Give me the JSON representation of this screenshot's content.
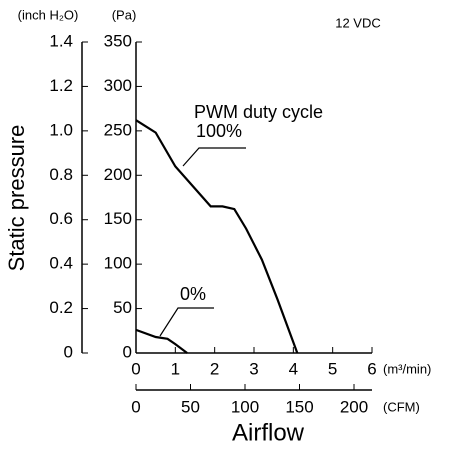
{
  "chart_data": {
    "type": "line",
    "title": "12 VDC",
    "ylabel": "Static pressure",
    "xlabel": "Airflow",
    "yunit": "(Pa)",
    "y2unit": "(inch H₂O)",
    "xunit": "(m³/min)",
    "x2unit": "(CFM)",
    "annotation": "PWM duty cycle",
    "xlim": [
      0,
      6
    ],
    "xticks": [
      0,
      1,
      2,
      3,
      4,
      5,
      6
    ],
    "x2lim": [
      0,
      216.5
    ],
    "x2ticks": [
      0,
      50,
      100,
      150,
      200
    ],
    "ylim": [
      0,
      350
    ],
    "yticks": [
      0,
      50,
      100,
      150,
      200,
      250,
      300,
      350
    ],
    "y2lim": [
      0,
      1.4
    ],
    "y2ticks": [
      0,
      0.2,
      0.4,
      0.6,
      0.8,
      {
        "value": 1.0,
        "label": "1.0"
      },
      1.2,
      1.4
    ],
    "grid": false,
    "series": [
      {
        "name": "100%",
        "color": "#000000",
        "x": [
          0,
          0.5,
          1,
          1.5,
          1.9,
          2.2,
          2.5,
          2.8,
          3.2,
          3.6,
          4.1
        ],
        "values": [
          262,
          248,
          210,
          185,
          165,
          165,
          162,
          140,
          105,
          60,
          0
        ]
      },
      {
        "name": "0%",
        "color": "#000000",
        "x": [
          0,
          0.5,
          0.8,
          1,
          1.3
        ],
        "values": [
          26,
          18,
          16,
          10,
          0
        ]
      }
    ]
  }
}
